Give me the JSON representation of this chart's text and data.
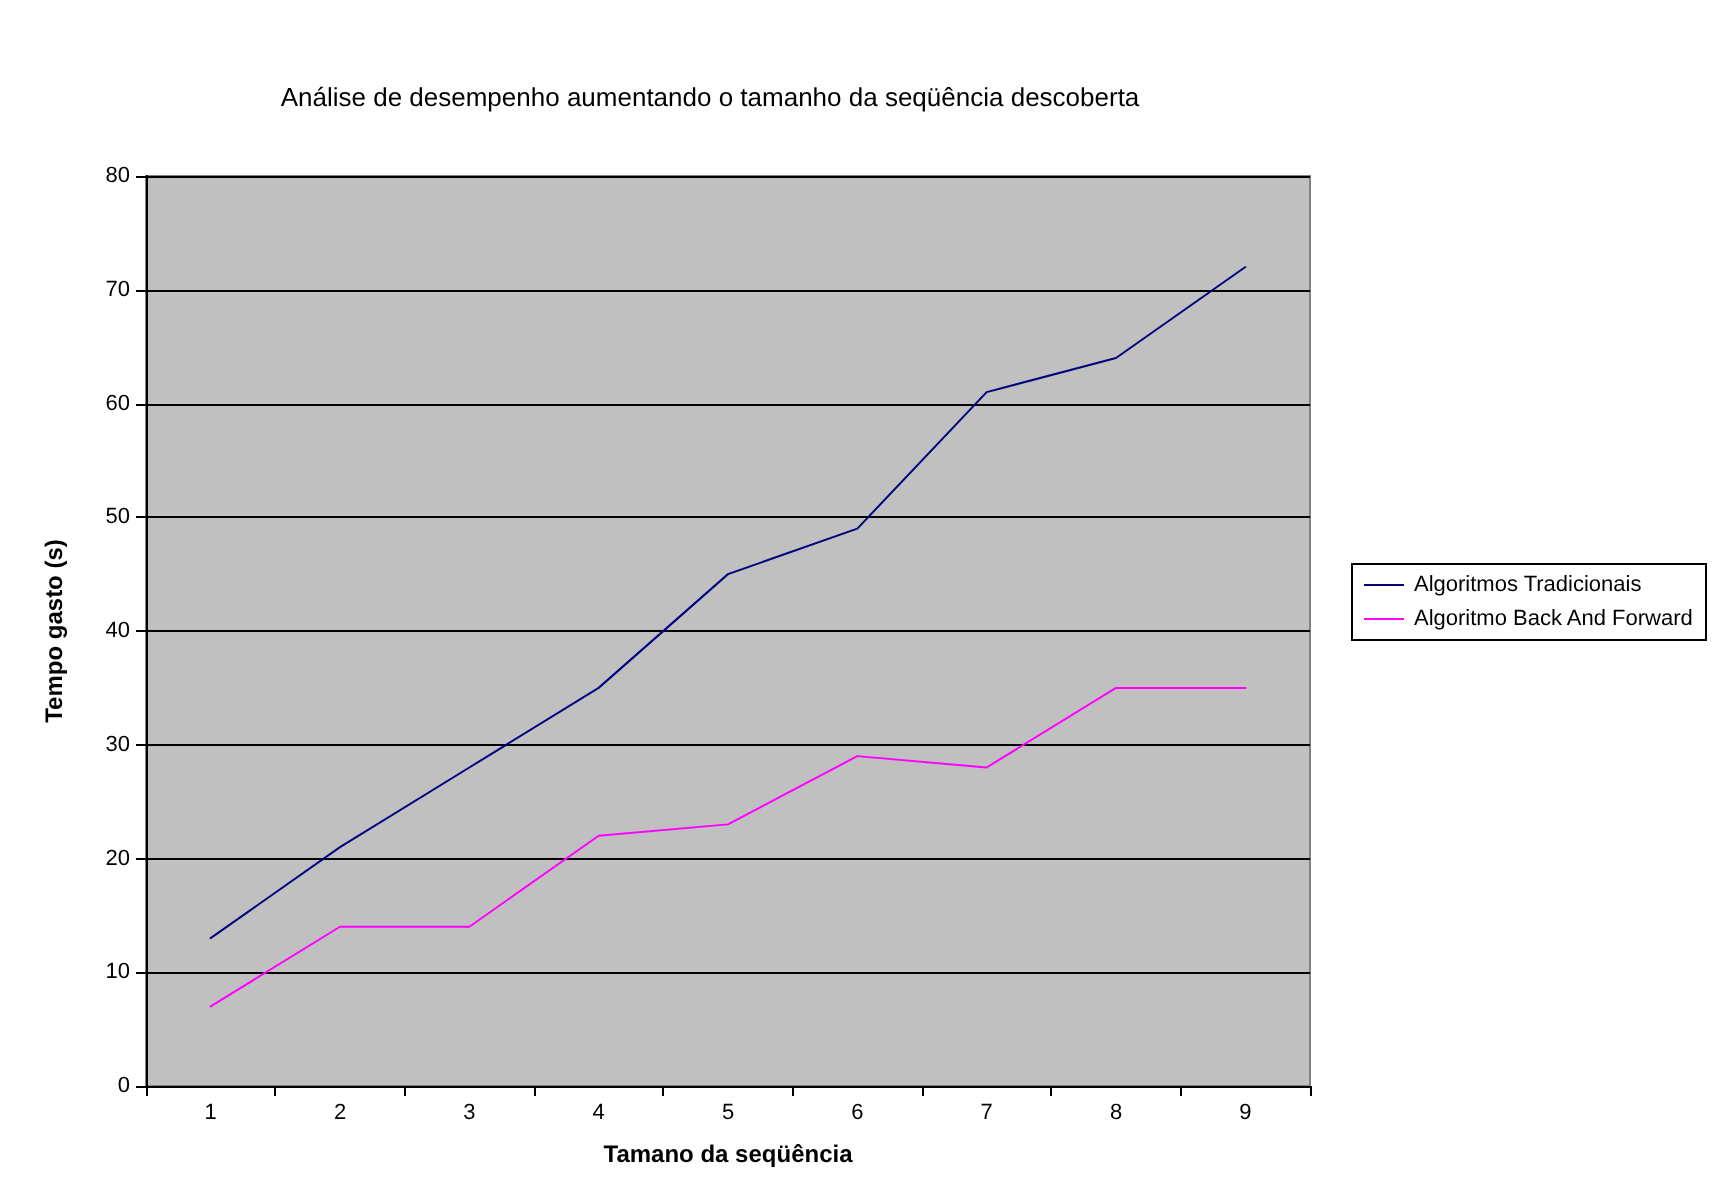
{
  "chart_data": {
    "type": "line",
    "title": "Análise de desempenho aumentando o tamanho da seqüência descoberta",
    "xlabel": "Tamano da seqüência",
    "ylabel": "Tempo gasto (s)",
    "categories": [
      "1",
      "2",
      "3",
      "4",
      "5",
      "6",
      "7",
      "8",
      "9"
    ],
    "series": [
      {
        "name": "Algoritmos Tradicionais",
        "color": "#000080",
        "values": [
          13,
          21,
          28,
          35,
          45,
          49,
          61,
          64,
          72
        ]
      },
      {
        "name": "Algoritmo Back And Forward",
        "color": "#ff00ff",
        "values": [
          7,
          14,
          14,
          22,
          23,
          29,
          28,
          35,
          35
        ]
      }
    ],
    "ylim": [
      0,
      80
    ],
    "yticks": [
      0,
      10,
      20,
      30,
      40,
      50,
      60,
      70,
      80
    ],
    "grid": "y",
    "legend": "right",
    "marker": "none",
    "line_style": "solid"
  }
}
